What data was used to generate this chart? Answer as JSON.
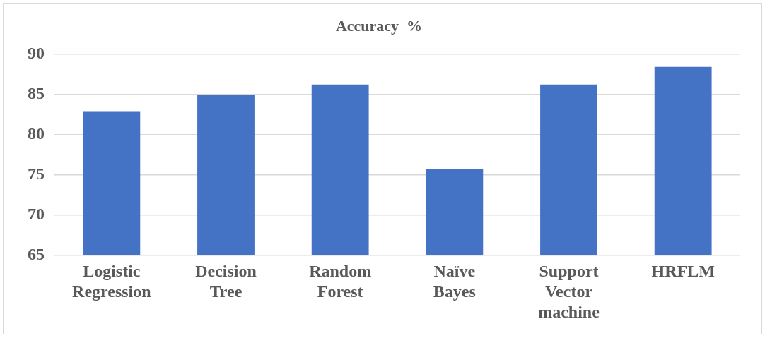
{
  "chart_data": {
    "type": "bar",
    "title": "Accuracy  %",
    "categories": [
      "Logistic Regression",
      "Decision Tree",
      "Random Forest",
      "Naïve Bayes",
      "Support Vector machine",
      "HRFLM"
    ],
    "values": [
      82.8,
      84.9,
      86.2,
      75.7,
      86.2,
      88.4
    ],
    "color": "#4472c4",
    "ylim": [
      65,
      90
    ],
    "yticks": [
      65,
      70,
      75,
      80,
      85,
      90
    ],
    "grid": "y",
    "legend": false
  }
}
